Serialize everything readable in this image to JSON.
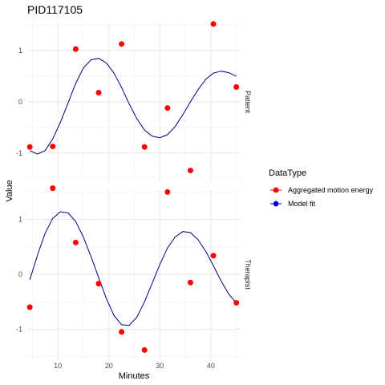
{
  "chart_data": {
    "type": "scatter",
    "title": "PID117105",
    "xlabel": "Minutes",
    "ylabel": "Value",
    "xlim": [
      4,
      46
    ],
    "ylim": [
      -1.55,
      1.55
    ],
    "x_ticks": [
      10,
      20,
      30,
      40
    ],
    "y_ticks": [
      -1,
      0,
      1
    ],
    "grid": true,
    "legend": {
      "title": "DataType",
      "position": "right",
      "entries": [
        {
          "label": "Aggregated motion energy",
          "color": "#ff0000",
          "fill": "#ff0000"
        },
        {
          "label": "Model fit",
          "color": "#0000ff",
          "fill": "#0000cd"
        }
      ]
    },
    "panels": [
      {
        "label": "Patient",
        "points": [
          {
            "x": 4.5,
            "y": -0.88
          },
          {
            "x": 9.0,
            "y": -0.87
          },
          {
            "x": 13.5,
            "y": 1.03
          },
          {
            "x": 18.0,
            "y": 0.18
          },
          {
            "x": 22.5,
            "y": 1.13
          },
          {
            "x": 27.0,
            "y": -0.88
          },
          {
            "x": 31.5,
            "y": -0.12
          },
          {
            "x": 36.0,
            "y": -1.34
          },
          {
            "x": 40.5,
            "y": 1.52
          },
          {
            "x": 45.0,
            "y": 0.29
          }
        ],
        "fit": [
          {
            "x": 4.5,
            "y": -0.95
          },
          {
            "x": 6.0,
            "y": -1.02
          },
          {
            "x": 7.5,
            "y": -0.95
          },
          {
            "x": 9.0,
            "y": -0.72
          },
          {
            "x": 10.5,
            "y": -0.4
          },
          {
            "x": 12.0,
            "y": -0.02
          },
          {
            "x": 13.5,
            "y": 0.36
          },
          {
            "x": 15.0,
            "y": 0.66
          },
          {
            "x": 16.5,
            "y": 0.82
          },
          {
            "x": 18.0,
            "y": 0.85
          },
          {
            "x": 19.5,
            "y": 0.76
          },
          {
            "x": 21.0,
            "y": 0.56
          },
          {
            "x": 22.5,
            "y": 0.28
          },
          {
            "x": 24.0,
            "y": -0.04
          },
          {
            "x": 25.5,
            "y": -0.33
          },
          {
            "x": 27.0,
            "y": -0.55
          },
          {
            "x": 28.5,
            "y": -0.67
          },
          {
            "x": 30.0,
            "y": -0.7
          },
          {
            "x": 31.5,
            "y": -0.64
          },
          {
            "x": 33.0,
            "y": -0.48
          },
          {
            "x": 34.5,
            "y": -0.25
          },
          {
            "x": 36.0,
            "y": 0.0
          },
          {
            "x": 37.5,
            "y": 0.24
          },
          {
            "x": 39.0,
            "y": 0.44
          },
          {
            "x": 40.5,
            "y": 0.56
          },
          {
            "x": 42.0,
            "y": 0.6
          },
          {
            "x": 43.5,
            "y": 0.57
          },
          {
            "x": 45.0,
            "y": 0.5
          }
        ]
      },
      {
        "label": "Therapist",
        "points": [
          {
            "x": 4.5,
            "y": -0.6
          },
          {
            "x": 9.0,
            "y": 1.57
          },
          {
            "x": 13.5,
            "y": 0.58
          },
          {
            "x": 18.0,
            "y": -0.17
          },
          {
            "x": 22.5,
            "y": -1.05
          },
          {
            "x": 27.0,
            "y": -1.38
          },
          {
            "x": 31.5,
            "y": 1.5
          },
          {
            "x": 36.0,
            "y": -0.15
          },
          {
            "x": 40.5,
            "y": 0.34
          },
          {
            "x": 45.0,
            "y": -0.52
          }
        ],
        "fit": [
          {
            "x": 4.5,
            "y": -0.1
          },
          {
            "x": 6.0,
            "y": 0.35
          },
          {
            "x": 7.5,
            "y": 0.75
          },
          {
            "x": 9.0,
            "y": 1.02
          },
          {
            "x": 10.5,
            "y": 1.14
          },
          {
            "x": 12.0,
            "y": 1.12
          },
          {
            "x": 13.5,
            "y": 0.96
          },
          {
            "x": 15.0,
            "y": 0.68
          },
          {
            "x": 16.5,
            "y": 0.32
          },
          {
            "x": 18.0,
            "y": -0.06
          },
          {
            "x": 19.5,
            "y": -0.44
          },
          {
            "x": 21.0,
            "y": -0.75
          },
          {
            "x": 22.5,
            "y": -0.92
          },
          {
            "x": 24.0,
            "y": -0.93
          },
          {
            "x": 25.5,
            "y": -0.78
          },
          {
            "x": 27.0,
            "y": -0.5
          },
          {
            "x": 28.5,
            "y": -0.16
          },
          {
            "x": 30.0,
            "y": 0.18
          },
          {
            "x": 31.5,
            "y": 0.48
          },
          {
            "x": 33.0,
            "y": 0.68
          },
          {
            "x": 34.5,
            "y": 0.78
          },
          {
            "x": 36.0,
            "y": 0.76
          },
          {
            "x": 37.5,
            "y": 0.63
          },
          {
            "x": 39.0,
            "y": 0.42
          },
          {
            "x": 40.5,
            "y": 0.16
          },
          {
            "x": 42.0,
            "y": -0.12
          },
          {
            "x": 43.5,
            "y": -0.36
          },
          {
            "x": 45.0,
            "y": -0.52
          }
        ]
      }
    ]
  }
}
